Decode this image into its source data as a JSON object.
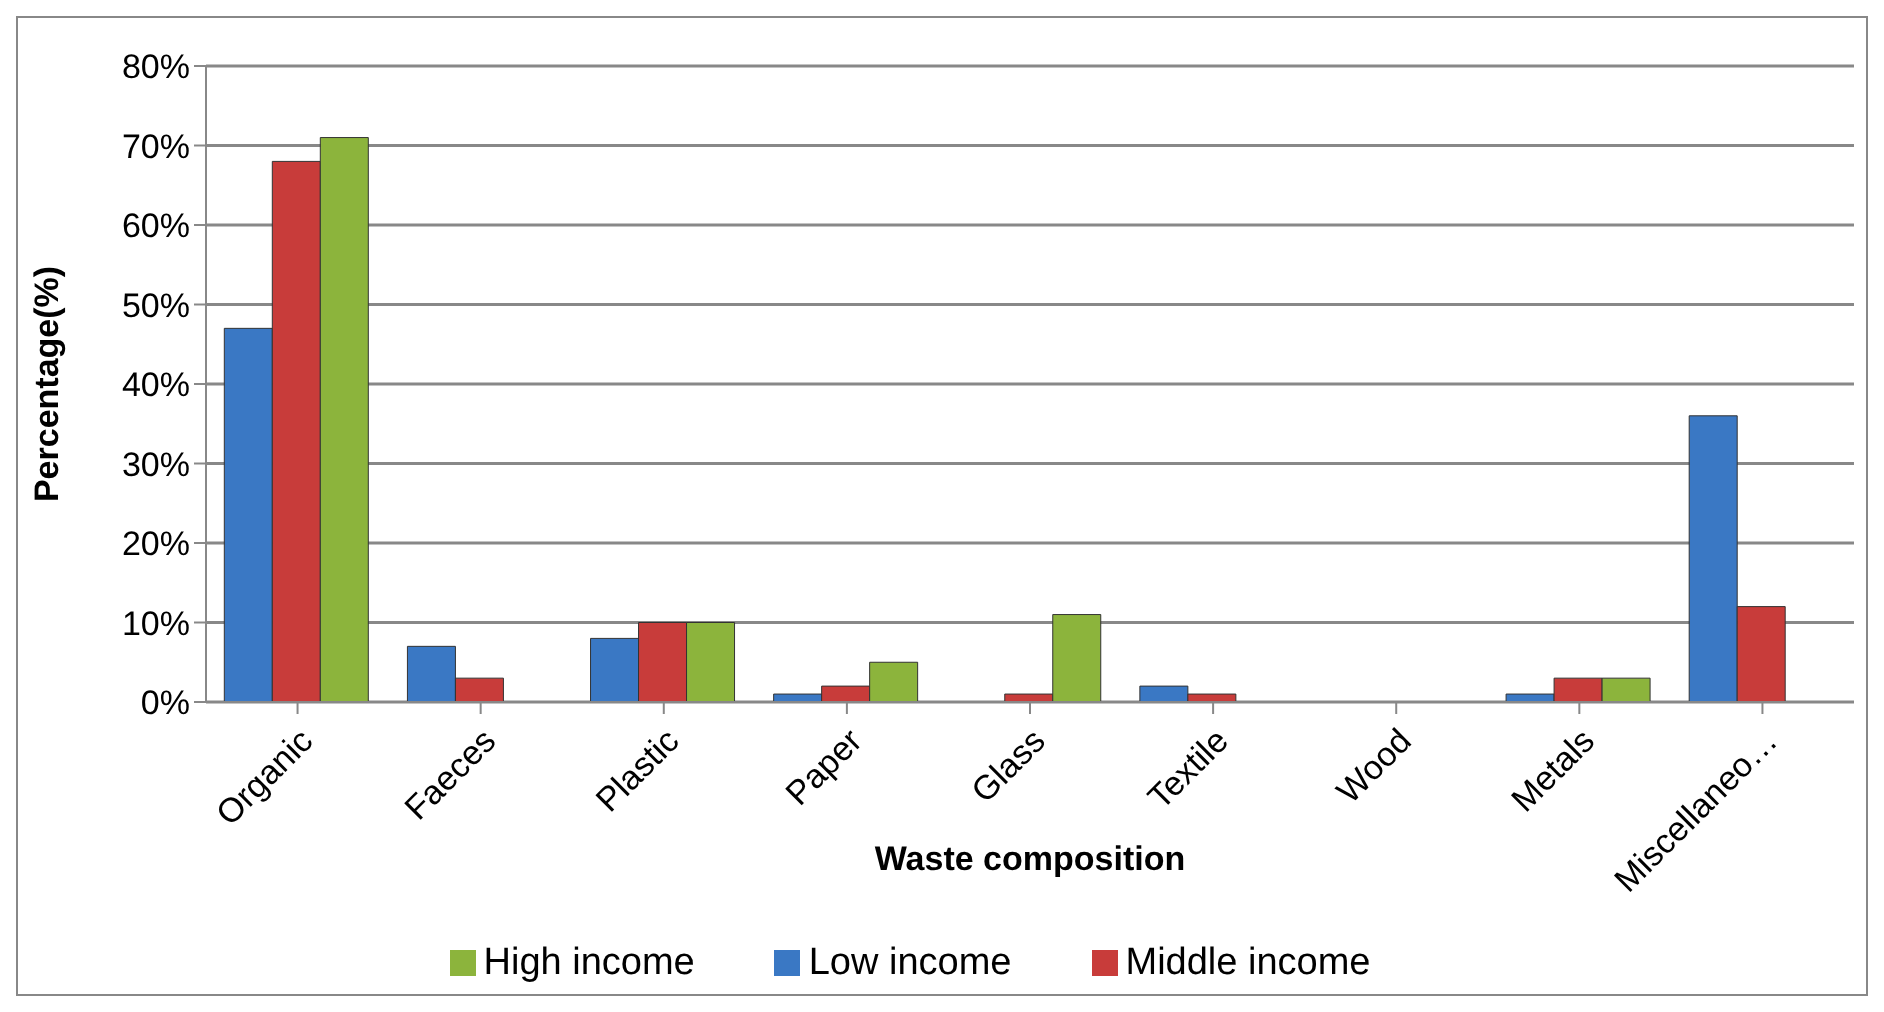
{
  "chart_data": {
    "type": "bar",
    "xlabel": "Waste composition",
    "ylabel": "Percentage(%)",
    "categories": [
      "Organic",
      "Faeces",
      "Plastic",
      "Paper",
      "Glass",
      "Textile",
      "Wood",
      "Metals",
      "Miscellaneo…"
    ],
    "series": [
      {
        "name": "Low income",
        "color": "#3a78c4",
        "values": [
          47,
          7,
          8,
          1,
          null,
          2,
          null,
          1,
          36
        ]
      },
      {
        "name": "Middle income",
        "color": "#c83c3a",
        "values": [
          68,
          3,
          10,
          2,
          1,
          1,
          null,
          3,
          12
        ]
      },
      {
        "name": "High income",
        "color": "#8cb43c",
        "values": [
          71,
          null,
          10,
          5,
          11,
          null,
          null,
          3,
          null
        ]
      }
    ],
    "ylim": [
      0,
      80
    ],
    "yticks": [
      {
        "value": 0,
        "label": "0%"
      },
      {
        "value": 10,
        "label": "10%"
      },
      {
        "value": 20,
        "label": "20%"
      },
      {
        "value": 30,
        "label": "30%"
      },
      {
        "value": 40,
        "label": "40%"
      },
      {
        "value": 50,
        "label": "50%"
      },
      {
        "value": 60,
        "label": "60%"
      },
      {
        "value": 70,
        "label": "70%"
      },
      {
        "value": 80,
        "label": "80%"
      }
    ],
    "grid": "y",
    "legend": "bottom"
  }
}
